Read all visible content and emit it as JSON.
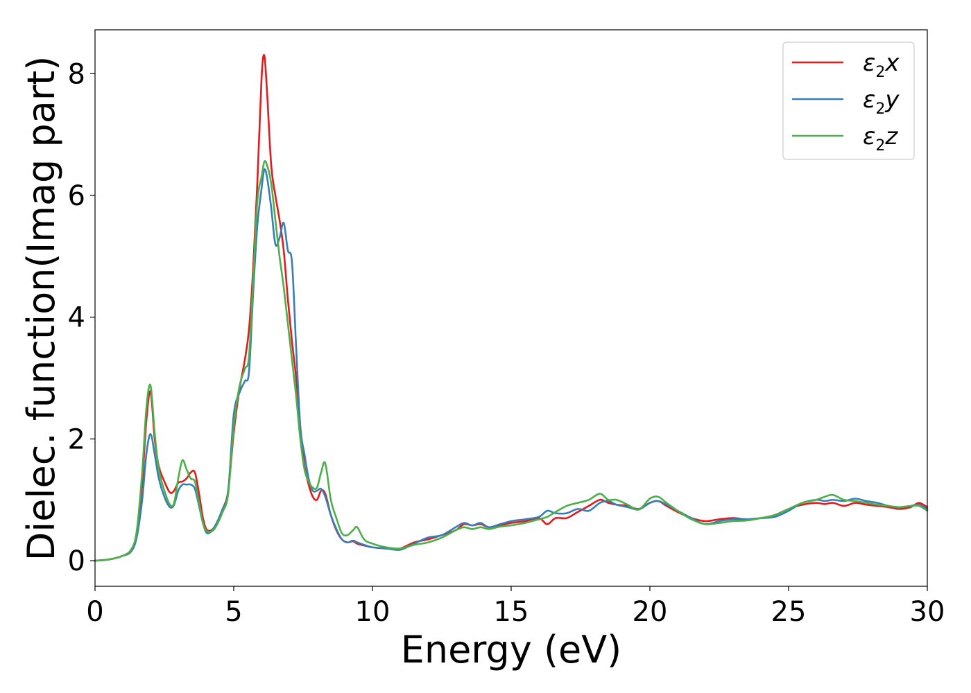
{
  "chart_data": {
    "type": "line",
    "xlabel": "Energy (eV)",
    "ylabel": "Dielec. function(Imag part)",
    "xlim": [
      0,
      30
    ],
    "ylim": [
      -0.42,
      8.72
    ],
    "xticks": [
      "0",
      "5",
      "10",
      "15",
      "20",
      "25",
      "30"
    ],
    "yticks": [
      "0",
      "2",
      "4",
      "6",
      "8"
    ],
    "grid": false,
    "legend_position": "top-right",
    "x": [
      0,
      0.5,
      1.0,
      1.3,
      1.5,
      1.7,
      1.85,
      2.0,
      2.15,
      2.3,
      2.5,
      2.7,
      2.85,
      3.0,
      3.15,
      3.3,
      3.45,
      3.6,
      3.75,
      3.9,
      4.05,
      4.3,
      4.6,
      4.8,
      5.0,
      5.2,
      5.4,
      5.55,
      5.7,
      5.85,
      6.0,
      6.1,
      6.2,
      6.35,
      6.5,
      6.65,
      6.8,
      6.95,
      7.1,
      7.25,
      7.4,
      7.55,
      7.7,
      7.85,
      8.0,
      8.15,
      8.3,
      8.5,
      8.7,
      8.9,
      9.1,
      9.3,
      9.45,
      9.7,
      10.0,
      10.5,
      11.0,
      11.5,
      12.0,
      12.5,
      13.0,
      13.3,
      13.6,
      13.9,
      14.2,
      14.6,
      15.0,
      15.5,
      16.0,
      16.3,
      16.6,
      17.0,
      17.4,
      17.8,
      18.2,
      18.5,
      18.8,
      19.2,
      19.6,
      20.0,
      20.3,
      20.6,
      21.0,
      21.5,
      22.0,
      22.5,
      23.0,
      23.5,
      24.0,
      24.5,
      25.0,
      25.5,
      26.0,
      26.3,
      26.6,
      27.0,
      27.4,
      27.8,
      28.2,
      28.6,
      29.0,
      29.4,
      29.7,
      30.0
    ],
    "series": [
      {
        "name": "ε₂x",
        "name_base": "ε",
        "name_sub": "2",
        "name_tail": "x",
        "color": "#e41a1c",
        "values": [
          0,
          0.02,
          0.08,
          0.18,
          0.45,
          1.3,
          2.3,
          2.78,
          2.0,
          1.55,
          1.3,
          1.12,
          1.15,
          1.28,
          1.3,
          1.35,
          1.45,
          1.45,
          1.1,
          0.68,
          0.5,
          0.55,
          0.85,
          1.15,
          2.1,
          2.8,
          3.3,
          3.8,
          4.8,
          6.2,
          7.9,
          8.3,
          7.7,
          6.5,
          6.0,
          5.6,
          5.1,
          4.3,
          3.6,
          3.0,
          2.2,
          1.55,
          1.25,
          1.05,
          1.0,
          1.15,
          1.1,
          0.75,
          0.5,
          0.35,
          0.3,
          0.32,
          0.28,
          0.25,
          0.22,
          0.2,
          0.2,
          0.3,
          0.35,
          0.42,
          0.5,
          0.6,
          0.58,
          0.6,
          0.55,
          0.58,
          0.62,
          0.65,
          0.7,
          0.6,
          0.7,
          0.7,
          0.8,
          0.9,
          1.0,
          0.95,
          0.92,
          0.9,
          0.85,
          0.95,
          0.98,
          0.9,
          0.8,
          0.7,
          0.65,
          0.68,
          0.7,
          0.68,
          0.7,
          0.75,
          0.85,
          0.92,
          0.95,
          0.93,
          0.95,
          0.9,
          0.95,
          0.92,
          0.9,
          0.88,
          0.85,
          0.88,
          0.95,
          0.88
        ]
      },
      {
        "name": "ε₂y",
        "name_base": "ε",
        "name_sub": "2",
        "name_tail": "y",
        "color": "#377eb8",
        "values": [
          0,
          0.02,
          0.08,
          0.15,
          0.38,
          1.0,
          1.75,
          2.08,
          1.75,
          1.35,
          1.05,
          0.88,
          0.92,
          1.15,
          1.25,
          1.25,
          1.25,
          1.18,
          0.9,
          0.6,
          0.45,
          0.55,
          0.85,
          1.15,
          2.4,
          2.75,
          2.95,
          3.1,
          4.4,
          5.5,
          6.1,
          6.42,
          6.3,
          5.8,
          5.2,
          5.3,
          5.55,
          5.1,
          4.9,
          3.5,
          2.2,
          1.75,
          1.35,
          1.15,
          1.15,
          1.18,
          1.05,
          0.75,
          0.52,
          0.35,
          0.3,
          0.33,
          0.3,
          0.26,
          0.22,
          0.2,
          0.18,
          0.28,
          0.38,
          0.42,
          0.55,
          0.62,
          0.58,
          0.62,
          0.55,
          0.6,
          0.65,
          0.68,
          0.72,
          0.82,
          0.78,
          0.78,
          0.85,
          0.82,
          0.95,
          0.98,
          0.92,
          0.88,
          0.84,
          0.95,
          0.98,
          0.92,
          0.82,
          0.7,
          0.6,
          0.65,
          0.68,
          0.68,
          0.7,
          0.72,
          0.82,
          0.95,
          1.0,
          0.98,
          1.0,
          0.98,
          1.02,
          0.98,
          0.95,
          0.9,
          0.88,
          0.9,
          0.92,
          0.85
        ]
      },
      {
        "name": "ε₂z",
        "name_base": "ε",
        "name_sub": "2",
        "name_tail": "z",
        "color": "#4daf4a",
        "values": [
          0,
          0.02,
          0.08,
          0.18,
          0.48,
          1.45,
          2.5,
          2.88,
          2.1,
          1.5,
          1.15,
          0.92,
          0.95,
          1.35,
          1.65,
          1.5,
          1.35,
          1.3,
          0.95,
          0.6,
          0.48,
          0.52,
          0.8,
          1.1,
          2.2,
          2.85,
          3.15,
          3.35,
          4.6,
          5.9,
          6.3,
          6.55,
          6.5,
          6.2,
          5.6,
          5.0,
          4.5,
          3.9,
          3.3,
          2.7,
          2.0,
          1.5,
          1.3,
          1.2,
          1.2,
          1.45,
          1.6,
          1.0,
          0.7,
          0.45,
          0.42,
          0.5,
          0.55,
          0.35,
          0.28,
          0.22,
          0.2,
          0.26,
          0.3,
          0.38,
          0.5,
          0.55,
          0.52,
          0.55,
          0.52,
          0.56,
          0.58,
          0.62,
          0.68,
          0.72,
          0.8,
          0.9,
          0.95,
          1.0,
          1.1,
          1.0,
          1.0,
          0.92,
          0.84,
          1.02,
          1.05,
          0.95,
          0.82,
          0.68,
          0.6,
          0.62,
          0.65,
          0.66,
          0.7,
          0.75,
          0.85,
          0.95,
          1.0,
          1.05,
          1.08,
          1.0,
          0.98,
          0.95,
          0.92,
          0.9,
          0.88,
          0.9,
          0.9,
          0.82
        ]
      }
    ]
  }
}
